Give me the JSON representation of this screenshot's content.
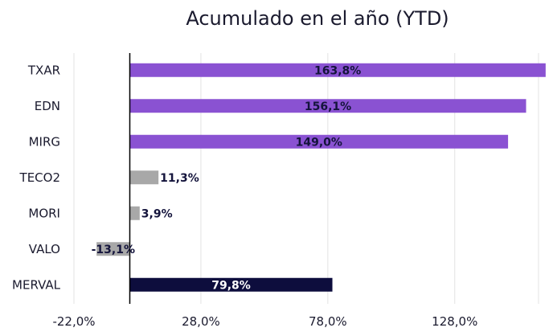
{
  "chart_data": {
    "type": "bar",
    "orientation": "horizontal",
    "title": "Acumulado en el año (YTD)",
    "categories": [
      "TXAR",
      "EDN",
      "MIRG",
      "TECO2",
      "MORI",
      "VALO",
      "MERVAL"
    ],
    "values": [
      163.8,
      156.1,
      149.0,
      11.3,
      3.9,
      -13.1,
      79.8
    ],
    "data_labels": [
      "163,8%",
      "156,1%",
      "149,0%",
      "11,3%",
      "3,9%",
      "-13,1%",
      "79,8%"
    ],
    "bar_colors": [
      "#8a52d2",
      "#8a52d2",
      "#8a52d2",
      "#a8a8a8",
      "#a8a8a8",
      "#a8a8a8",
      "#0d0d3d"
    ],
    "xlim": [
      -22,
      161
    ],
    "x_ticks": [
      -22,
      28,
      78,
      128
    ],
    "x_tick_labels": [
      "-22,0%",
      "28,0%",
      "78,0%",
      "128,0%"
    ],
    "grid": "vertical",
    "legend": "none"
  }
}
